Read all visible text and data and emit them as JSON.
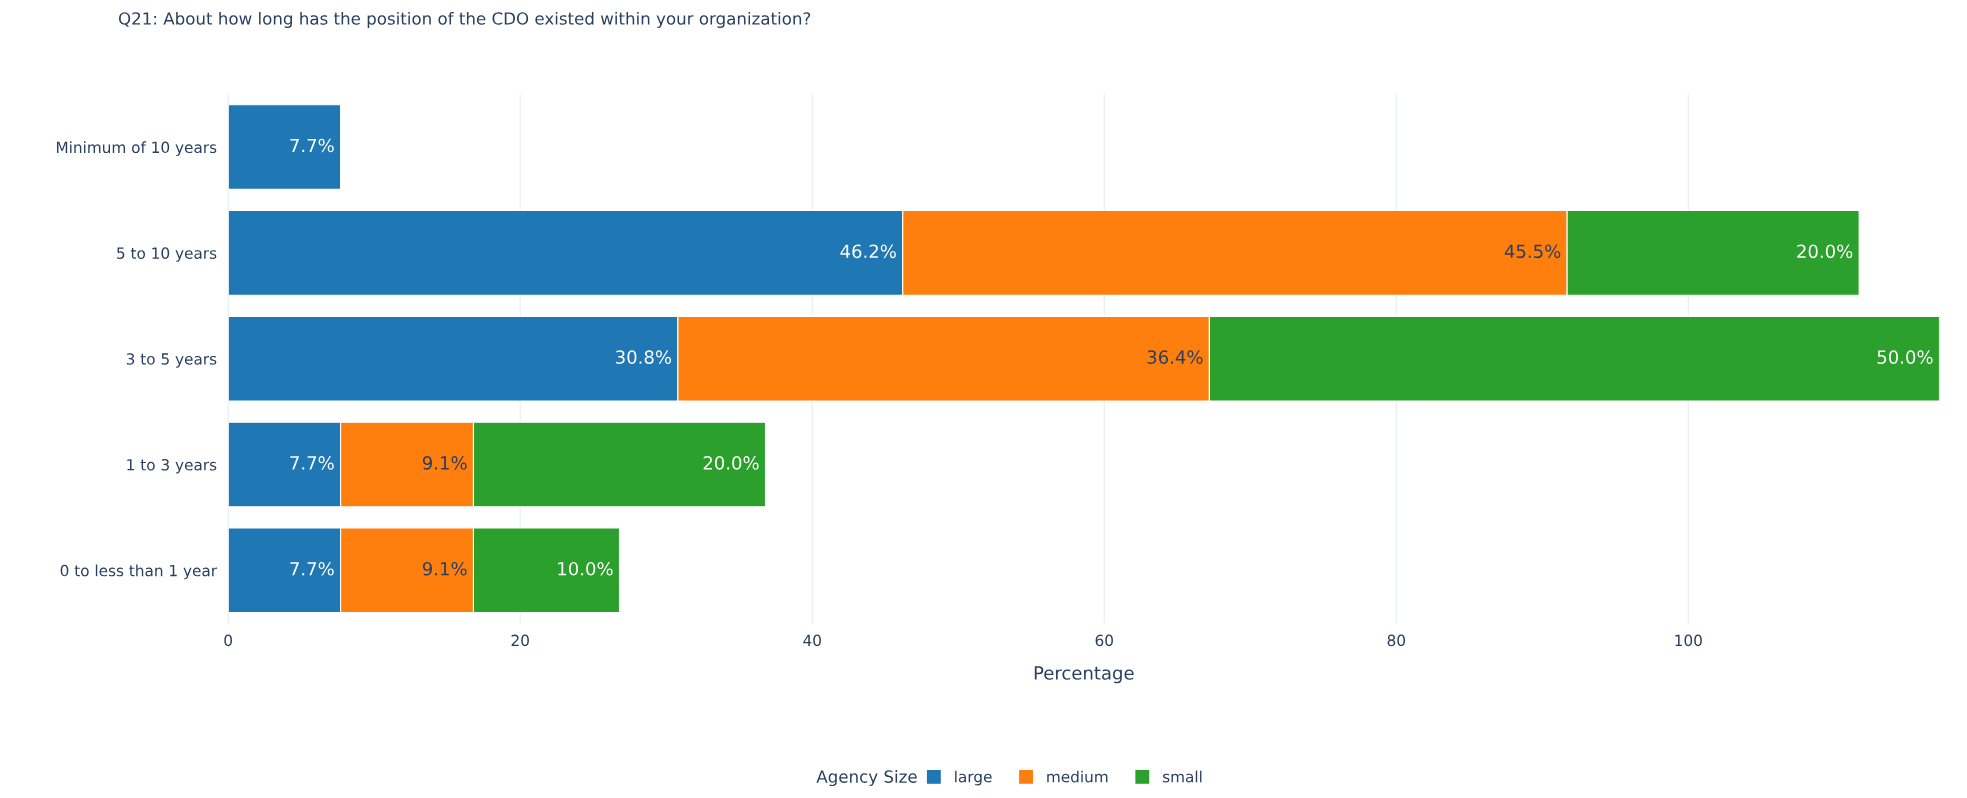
{
  "chart_data": {
    "type": "bar",
    "orientation": "horizontal",
    "stacked": true,
    "title": "Q21: About how long has the position of the CDO existed within your organization?",
    "xlabel": "Percentage",
    "legend_title": "Agency Size",
    "categories": [
      "Minimum of 10 years",
      "5 to 10 years",
      "3 to 5 years",
      "1 to 3 years",
      "0 to less than 1 year"
    ],
    "series": [
      {
        "name": "large",
        "color": "#1f77b4",
        "values": [
          7.7,
          46.2,
          30.8,
          7.7,
          7.7
        ],
        "value_labels": [
          "7.7%",
          "46.2%",
          "30.8%",
          "7.7%",
          "7.7%"
        ]
      },
      {
        "name": "medium",
        "color": "#ff7f0e",
        "values": [
          null,
          45.5,
          36.4,
          9.1,
          9.1
        ],
        "value_labels": [
          null,
          "45.5%",
          "36.4%",
          "9.1%",
          "9.1%"
        ]
      },
      {
        "name": "small",
        "color": "#2ca02c",
        "values": [
          null,
          20.0,
          50.0,
          20.0,
          10.0
        ],
        "value_labels": [
          null,
          "20.0%",
          "50.0%",
          "20.0%",
          "10.0%"
        ]
      }
    ],
    "xlim": [
      0,
      117.2
    ],
    "xticks": [
      0,
      20,
      40,
      60,
      80,
      100
    ],
    "grid": "x",
    "legend": "bottom"
  }
}
